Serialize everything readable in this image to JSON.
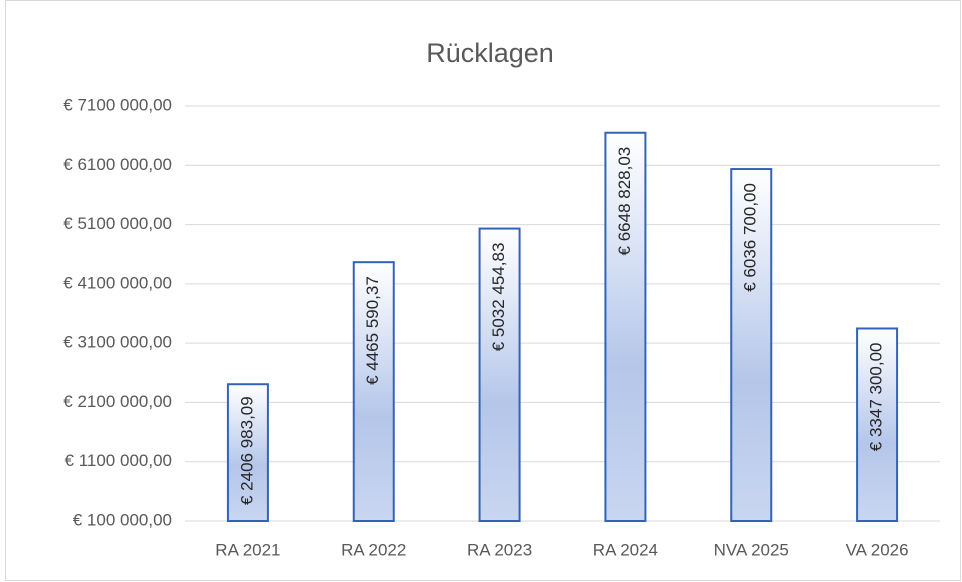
{
  "chart_data": {
    "type": "bar",
    "title": "Rücklagen",
    "categories": [
      "RA 2021",
      "RA 2022",
      "RA 2023",
      "RA 2024",
      "NVA 2025",
      "VA 2026"
    ],
    "values": [
      2406983.09,
      4465590.37,
      5032454.83,
      6648828.03,
      6036700.0,
      3347300.0
    ],
    "value_labels": [
      "€ 2406 983,09",
      "€ 4465 590,37",
      "€ 5032 454,83",
      "€ 6648 828,03",
      "€ 6036 700,00",
      "€ 3347 300,00"
    ],
    "color": "#4472c4",
    "ylim": [
      100000,
      7100000
    ],
    "yticks": [
      {
        "value": 100000,
        "label": "€ 100 000,00"
      },
      {
        "value": 1100000,
        "label": "€ 1100 000,00"
      },
      {
        "value": 2100000,
        "label": "€ 2100 000,00"
      },
      {
        "value": 3100000,
        "label": "€ 3100 000,00"
      },
      {
        "value": 4100000,
        "label": "€ 4100 000,00"
      },
      {
        "value": 5100000,
        "label": "€ 5100 000,00"
      },
      {
        "value": 6100000,
        "label": "€ 6100 000,00"
      },
      {
        "value": 7100000,
        "label": "€ 7100 000,00"
      }
    ],
    "grid": true
  }
}
